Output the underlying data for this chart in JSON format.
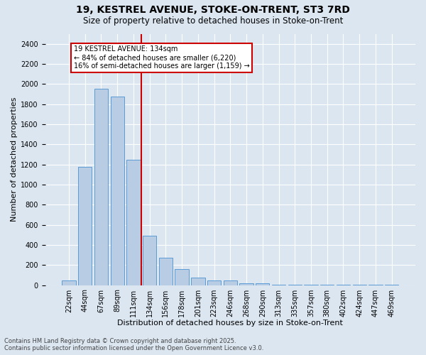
{
  "title_line1": "19, KESTREL AVENUE, STOKE-ON-TRENT, ST3 7RD",
  "title_line2": "Size of property relative to detached houses in Stoke-on-Trent",
  "xlabel": "Distribution of detached houses by size in Stoke-on-Trent",
  "ylabel": "Number of detached properties",
  "categories": [
    "22sqm",
    "44sqm",
    "67sqm",
    "89sqm",
    "111sqm",
    "134sqm",
    "156sqm",
    "178sqm",
    "201sqm",
    "223sqm",
    "246sqm",
    "268sqm",
    "290sqm",
    "313sqm",
    "335sqm",
    "357sqm",
    "380sqm",
    "402sqm",
    "424sqm",
    "447sqm",
    "469sqm"
  ],
  "values": [
    50,
    1175,
    1950,
    1875,
    1250,
    490,
    270,
    160,
    75,
    50,
    45,
    20,
    20,
    5,
    5,
    5,
    2,
    2,
    2,
    2,
    2
  ],
  "bar_color": "#b8cce4",
  "bar_edge_color": "#5b9bd5",
  "vline_color": "#cc0000",
  "annotation_text": "19 KESTREL AVENUE: 134sqm\n← 84% of detached houses are smaller (6,220)\n16% of semi-detached houses are larger (1,159) →",
  "annotation_box_color": "#ffffff",
  "annotation_box_edge_color": "#cc0000",
  "ylim": [
    0,
    2500
  ],
  "yticks": [
    0,
    200,
    400,
    600,
    800,
    1000,
    1200,
    1400,
    1600,
    1800,
    2000,
    2200,
    2400
  ],
  "bg_color": "#dce6f1",
  "plot_bg_color": "#dce6f1",
  "footer_line1": "Contains HM Land Registry data © Crown copyright and database right 2025.",
  "footer_line2": "Contains public sector information licensed under the Open Government Licence v3.0.",
  "title_fontsize": 10,
  "subtitle_fontsize": 8.5,
  "tick_fontsize": 7,
  "xlabel_fontsize": 8,
  "ylabel_fontsize": 8,
  "footer_fontsize": 6,
  "vline_index": 5
}
